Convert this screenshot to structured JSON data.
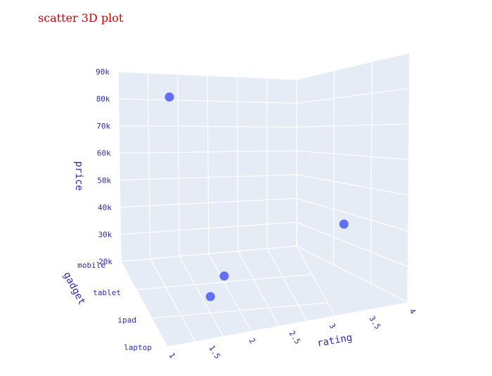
{
  "chart_data": {
    "type": "scatter",
    "title": "scatter 3D plot",
    "xlabel": "rating",
    "ylabel": "gadget",
    "zlabel": "price",
    "x_ticks": [
      "1",
      "1.5",
      "2",
      "2.5",
      "3",
      "3.5",
      "4"
    ],
    "y_ticks": [
      "laptop",
      "ipad",
      "tablet",
      "mobile"
    ],
    "z_ticks": [
      "20k",
      "30k",
      "40k",
      "50k",
      "60k",
      "70k",
      "80k",
      "90k"
    ],
    "xlim": [
      1,
      4
    ],
    "ylim": [
      "laptop",
      "mobile"
    ],
    "zlim": [
      20000,
      90000
    ],
    "points": [
      {
        "x": 1.0,
        "y": "laptop",
        "z": 90000
      },
      {
        "x": 4.0,
        "y": "laptop",
        "z": 50000
      },
      {
        "x": 2.0,
        "y": "ipad",
        "z": 25000
      },
      {
        "x": 2.5,
        "y": "tablet",
        "z": 22000
      }
    ],
    "colors": {
      "title": "#cc0000",
      "marker": "#636efa",
      "text": "#2a3f5f",
      "axis_text": "#2c2ca8",
      "pane": "#e5ecf6",
      "grid": "#ffffff"
    },
    "grid": true
  }
}
